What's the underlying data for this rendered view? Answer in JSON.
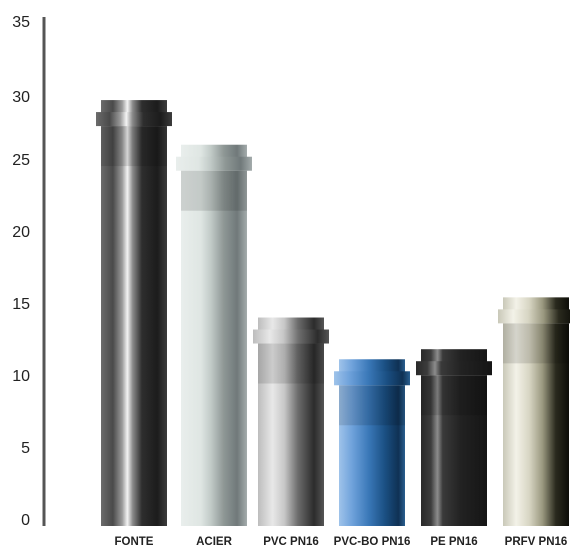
{
  "chart_data": {
    "type": "bar",
    "title": "",
    "xlabel": "",
    "ylabel": "",
    "ylim": [
      0,
      35
    ],
    "yticks": [
      0,
      5,
      10,
      15,
      20,
      25,
      30,
      35
    ],
    "grid": false,
    "categories": [
      "FONTE",
      "ACIER",
      "PVC PN16",
      "PVC-BO PN16",
      "PE PN16",
      "PRFV PN16"
    ],
    "values": [
      29.3,
      26.2,
      14.2,
      11.3,
      12.0,
      15.6
    ],
    "style": "pipe-shaped bars",
    "colors": {
      "FONTE": "#3a3a3a",
      "ACIER": "#cfd6d3",
      "PVC PN16": "#8a8a8a",
      "PVC-BO PN16": "#1f5f9a",
      "PE PN16": "#2a2a2a",
      "PRFV PN16": "#d6d4c4"
    }
  }
}
